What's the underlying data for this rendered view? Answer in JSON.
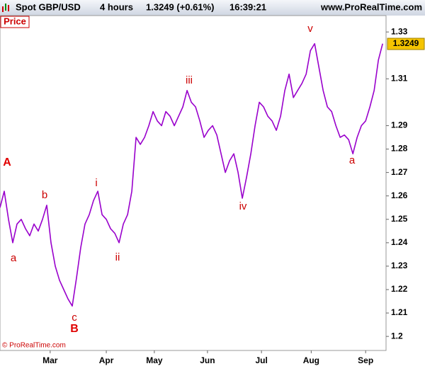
{
  "header": {
    "instrument": "Spot GBP/USD",
    "period": "4 hours",
    "quote": "1.3249 (+0.61%)",
    "time": "16:39:21",
    "site": "www.ProRealTime.com"
  },
  "chart_data": {
    "type": "line",
    "panel_label": "Price",
    "copyright": "© ProRealTime.com",
    "color": "#9900cc",
    "values": [
      1.255,
      1.262,
      1.25,
      1.24,
      1.248,
      1.25,
      1.246,
      1.243,
      1.248,
      1.245,
      1.25,
      1.256,
      1.24,
      1.23,
      1.224,
      1.22,
      1.216,
      1.213,
      1.225,
      1.238,
      1.248,
      1.252,
      1.258,
      1.262,
      1.252,
      1.25,
      1.246,
      1.244,
      1.24,
      1.248,
      1.252,
      1.262,
      1.285,
      1.282,
      1.285,
      1.29,
      1.296,
      1.292,
      1.29,
      1.296,
      1.294,
      1.29,
      1.294,
      1.298,
      1.305,
      1.3,
      1.298,
      1.292,
      1.285,
      1.288,
      1.29,
      1.286,
      1.278,
      1.27,
      1.275,
      1.278,
      1.27,
      1.259,
      1.268,
      1.278,
      1.29,
      1.3,
      1.298,
      1.294,
      1.292,
      1.288,
      1.294,
      1.305,
      1.312,
      1.302,
      1.305,
      1.308,
      1.312,
      1.322,
      1.325,
      1.315,
      1.305,
      1.298,
      1.296,
      1.29,
      1.285,
      1.286,
      1.284,
      1.278,
      1.285,
      1.29,
      1.292,
      1.298,
      1.305,
      1.318,
      1.325
    ],
    "last_value": 1.3249,
    "xlim": [
      0,
      90.8
    ],
    "xticks": [
      {
        "value": 11.8,
        "label": "Mar"
      },
      {
        "value": 25,
        "label": "Apr"
      },
      {
        "value": 36.3,
        "label": "May"
      },
      {
        "value": 48.8,
        "label": "Jun"
      },
      {
        "value": 61.5,
        "label": "Jul"
      },
      {
        "value": 73.2,
        "label": "Aug"
      },
      {
        "value": 86,
        "label": "Sep"
      }
    ],
    "ylim": [
      1.194,
      1.337
    ],
    "yticks": [
      1.2,
      1.21,
      1.22,
      1.23,
      1.24,
      1.25,
      1.26,
      1.27,
      1.28,
      1.29,
      1.31,
      1.33
    ],
    "annotations": [
      "A",
      "a",
      "b",
      "c",
      "B",
      "i",
      "ii",
      "iii",
      "iv",
      "v",
      "a"
    ]
  }
}
